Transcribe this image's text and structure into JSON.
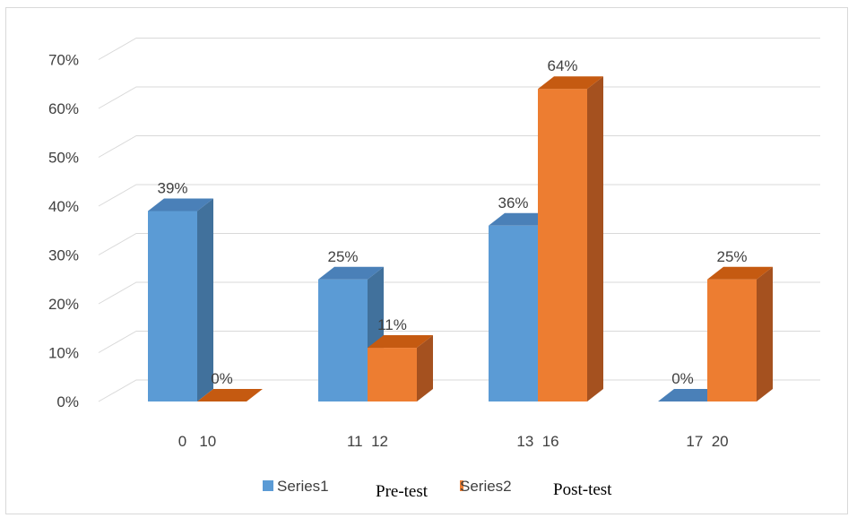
{
  "chart_data": {
    "type": "bar",
    "subtype": "3d-clustered-column",
    "title": "",
    "xlabel": "",
    "ylabel": "",
    "ylim": [
      0,
      0.7
    ],
    "y_ticks": [
      "0%",
      "10%",
      "20%",
      "30%",
      "40%",
      "50%",
      "60%",
      "70%"
    ],
    "grid": true,
    "categories": [
      "0   10",
      "11  12",
      "13  16",
      "17  20"
    ],
    "series": [
      {
        "name": "Series1",
        "values": [
          0.39,
          0.25,
          0.36,
          0.0
        ],
        "labels": [
          "39%",
          "25%",
          "36%",
          "0%"
        ],
        "color": "#5B9BD5",
        "side_color": "#41719C",
        "top_color": "#4A80B8"
      },
      {
        "name": "Series2",
        "values": [
          0.0,
          0.11,
          0.64,
          0.25
        ],
        "labels": [
          "0%",
          "11%",
          "64%",
          "25%"
        ],
        "color": "#ED7D31",
        "side_color": "#A5511F",
        "top_color": "#C55A11"
      }
    ],
    "legend": {
      "position": "bottom",
      "overlay_text": [
        "Pre-test",
        "Post-test"
      ]
    }
  }
}
